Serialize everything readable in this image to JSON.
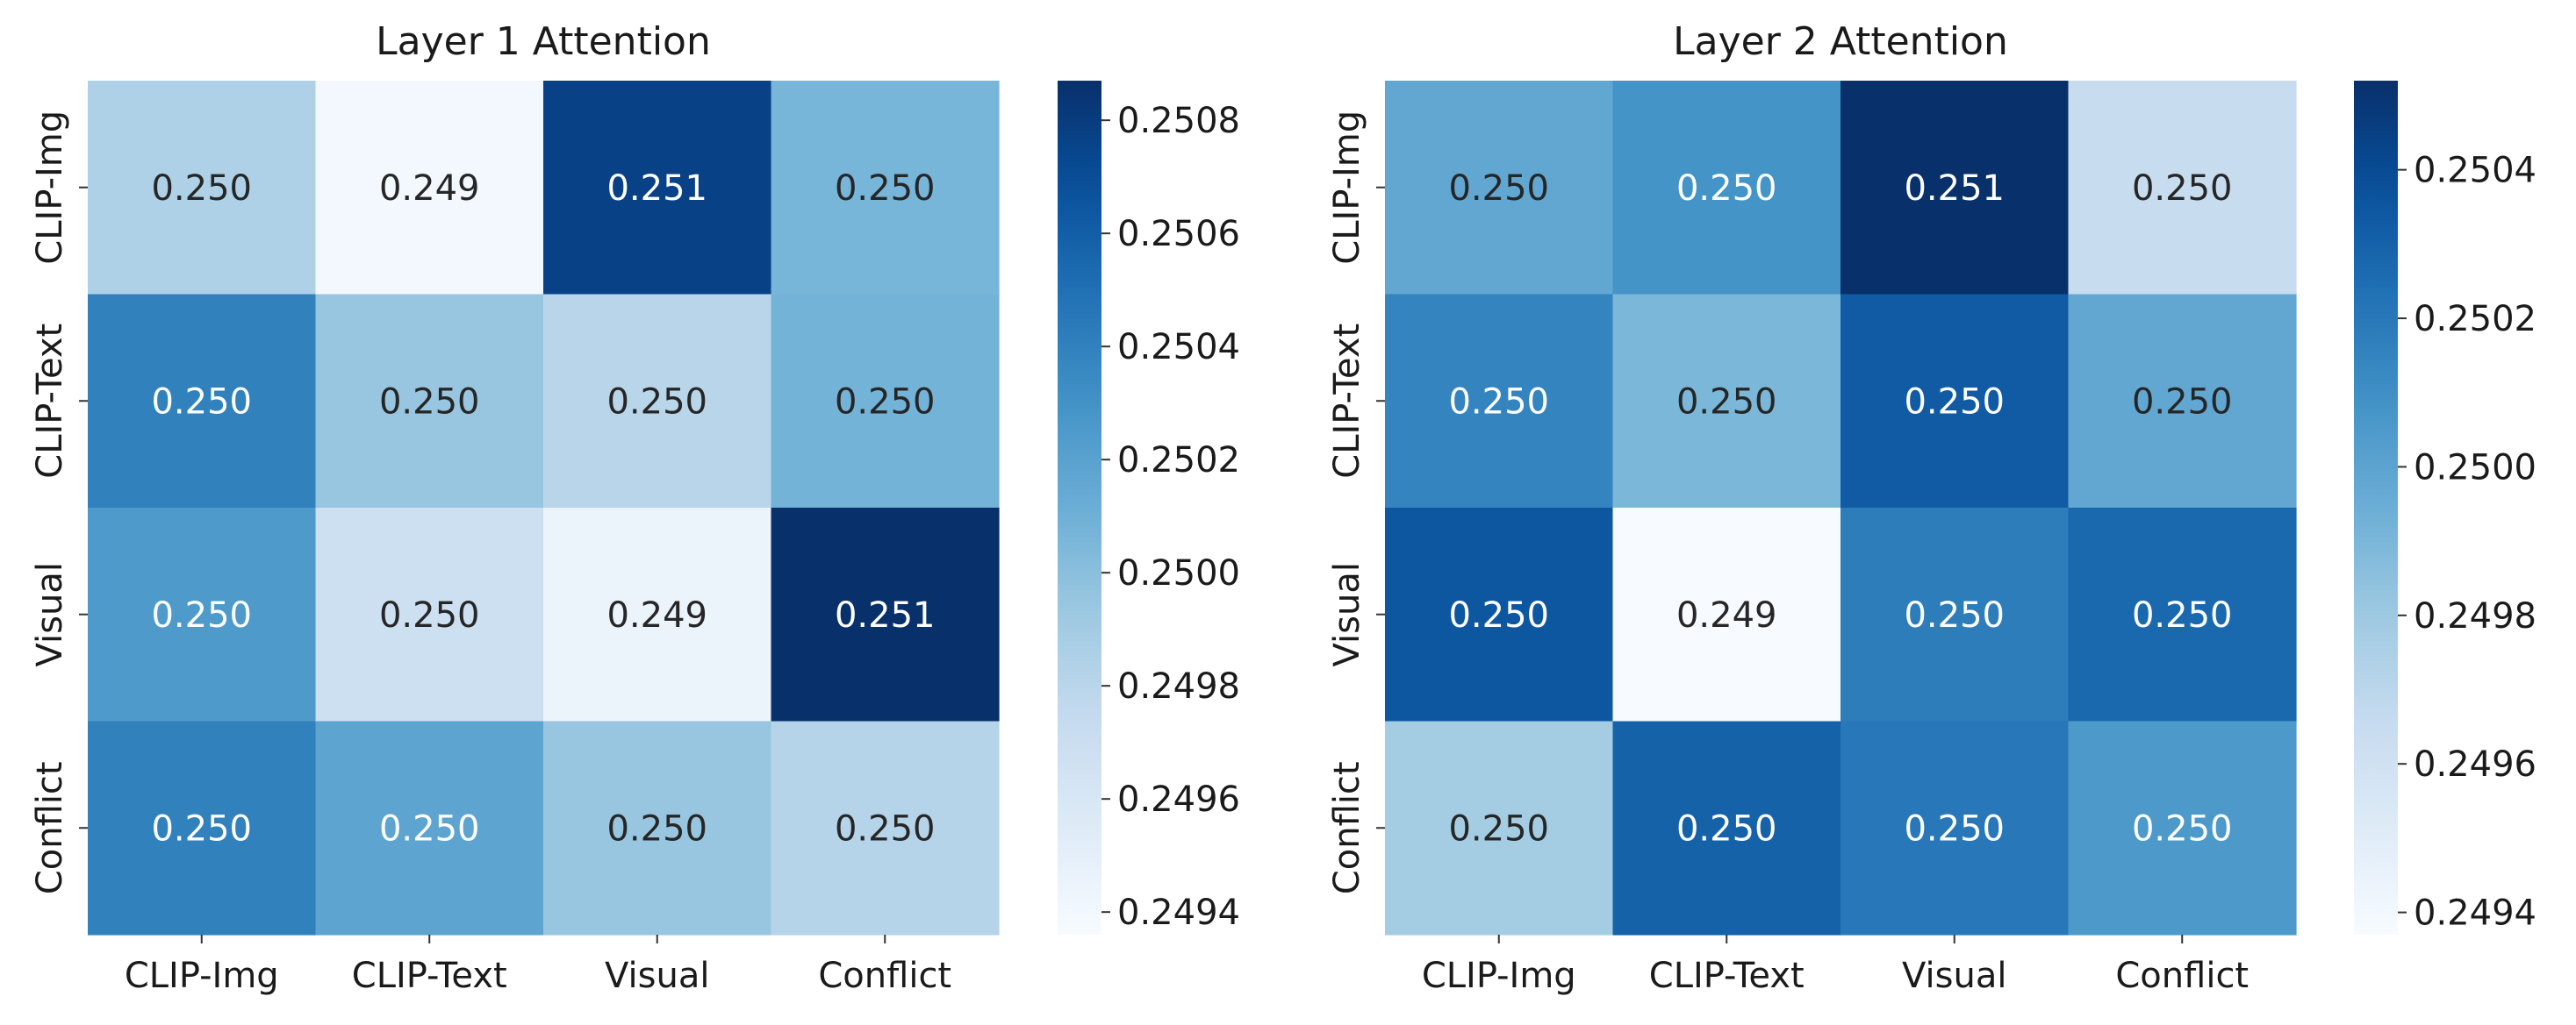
{
  "chart_data": [
    {
      "type": "heatmap",
      "title": "Layer 1 Attention",
      "rows": [
        "CLIP-Img",
        "CLIP-Text",
        "Visual",
        "Conflict"
      ],
      "columns": [
        "CLIP-Img",
        "CLIP-Text",
        "Visual",
        "Conflict"
      ],
      "values": [
        [
          0.24985,
          0.2494,
          0.25077,
          0.25007
        ],
        [
          0.2504,
          0.24995,
          0.2498,
          0.25008
        ],
        [
          0.25025,
          0.24968,
          0.24945,
          0.2509
        ],
        [
          0.2504,
          0.25018,
          0.24995,
          0.24982
        ]
      ],
      "labels": [
        [
          "0.250",
          "0.249",
          "0.251",
          "0.250"
        ],
        [
          "0.250",
          "0.250",
          "0.250",
          "0.250"
        ],
        [
          "0.250",
          "0.250",
          "0.249",
          "0.251"
        ],
        [
          "0.250",
          "0.250",
          "0.250",
          "0.250"
        ]
      ],
      "colormap": "Blues",
      "vmin": 0.24936,
      "vmax": 0.25087,
      "colorbar_ticks": [
        0.2494,
        0.2496,
        0.2498,
        0.25,
        0.2502,
        0.2504,
        0.2506,
        0.2508
      ],
      "colorbar_tick_labels": [
        "0.2494",
        "0.2496",
        "0.2498",
        "0.2500",
        "0.2502",
        "0.2504",
        "0.2506",
        "0.2508"
      ]
    },
    {
      "type": "heatmap",
      "title": "Layer 2 Attention",
      "rows": [
        "CLIP-Img",
        "CLIP-Text",
        "Visual",
        "Conflict"
      ],
      "columns": [
        "CLIP-Img",
        "CLIP-Text",
        "Visual",
        "Conflict"
      ],
      "values": [
        [
          0.24998,
          0.25008,
          0.25052,
          0.24965
        ],
        [
          0.25015,
          0.2499,
          0.25033,
          0.24998
        ],
        [
          0.25035,
          0.24937,
          0.25018,
          0.25027
        ],
        [
          0.24978,
          0.2503,
          0.2502,
          0.25005
        ]
      ],
      "labels": [
        [
          "0.250",
          "0.250",
          "0.251",
          "0.250"
        ],
        [
          "0.250",
          "0.250",
          "0.250",
          "0.250"
        ],
        [
          "0.250",
          "0.249",
          "0.250",
          "0.250"
        ],
        [
          "0.250",
          "0.250",
          "0.250",
          "0.250"
        ]
      ],
      "colormap": "Blues",
      "vmin": 0.24937,
      "vmax": 0.25052,
      "colorbar_ticks": [
        0.2494,
        0.2496,
        0.2498,
        0.25,
        0.2502,
        0.2504
      ],
      "colorbar_tick_labels": [
        "0.2494",
        "0.2496",
        "0.2498",
        "0.2500",
        "0.2502",
        "0.2504"
      ]
    }
  ]
}
